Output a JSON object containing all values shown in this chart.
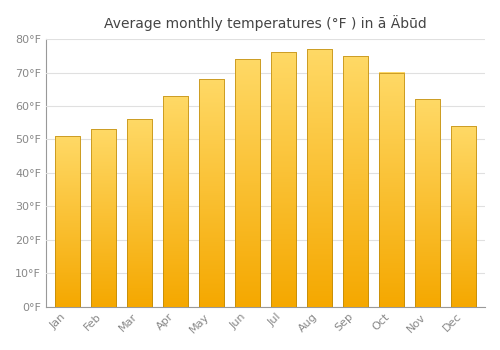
{
  "title": "Average monthly temperatures (°F ) in ā Äbūd",
  "months": [
    "Jan",
    "Feb",
    "Mar",
    "Apr",
    "May",
    "Jun",
    "Jul",
    "Aug",
    "Sep",
    "Oct",
    "Nov",
    "Dec"
  ],
  "values": [
    51,
    53,
    56,
    63,
    68,
    74,
    76,
    77,
    75,
    70,
    62,
    54
  ],
  "bar_color_bottom": "#F5A800",
  "bar_color_top": "#FFD966",
  "bar_edge_color": "#B8860B",
  "background_color": "#ffffff",
  "grid_color": "#e0e0e0",
  "ylim": [
    0,
    80
  ],
  "yticks": [
    0,
    10,
    20,
    30,
    40,
    50,
    60,
    70,
    80
  ],
  "tick_label_color": "#888888",
  "title_color": "#444444",
  "title_fontsize": 10,
  "bar_width": 0.7
}
